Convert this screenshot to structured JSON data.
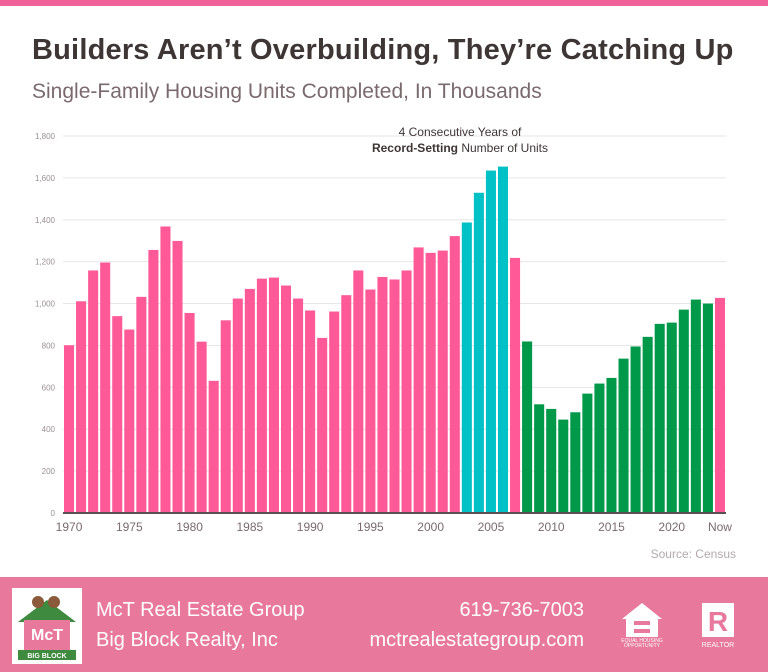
{
  "header": {
    "title": "Builders Aren’t Overbuilding, They’re Catching Up",
    "subtitle": "Single-Family Housing Units Completed, In Thousands"
  },
  "annotation": {
    "line1": "4 Consecutive Years of",
    "bold": "Record-Setting",
    "rest": " Number of Units"
  },
  "source": "Source: Census",
  "colors": {
    "pink": "#ff5a97",
    "teal": "#00c1c6",
    "green": "#00994a",
    "footer": "#e8789c",
    "accent": "#f0619a"
  },
  "chart_data": {
    "type": "bar",
    "title": "Single-Family Housing Units Completed, In Thousands",
    "ylim": [
      0,
      1800
    ],
    "yticks": [
      0,
      200,
      400,
      600,
      800,
      1000,
      1200,
      1400,
      1600,
      1800
    ],
    "ytick_labels": [
      "0",
      "200",
      "400",
      "600",
      "800",
      "1,000",
      "1,200",
      "1,400",
      "1,600",
      "1,800"
    ],
    "xtick_labels": [
      "1970",
      "1975",
      "1980",
      "1985",
      "1990",
      "1995",
      "2000",
      "2005",
      "2010",
      "2015",
      "2020",
      "Now"
    ],
    "grid": true,
    "categories": [
      "1970",
      "1971",
      "1972",
      "1973",
      "1974",
      "1975",
      "1976",
      "1977",
      "1978",
      "1979",
      "1980",
      "1981",
      "1982",
      "1983",
      "1984",
      "1985",
      "1986",
      "1987",
      "1988",
      "1989",
      "1990",
      "1991",
      "1992",
      "1993",
      "1994",
      "1995",
      "1996",
      "1997",
      "1998",
      "1999",
      "2000",
      "2001",
      "2002",
      "2003",
      "2004",
      "2005",
      "2006",
      "2007",
      "2008",
      "2009",
      "2010",
      "2011",
      "2012",
      "2013",
      "2014",
      "2015",
      "2016",
      "2017",
      "2018",
      "2019",
      "2020",
      "2021",
      "2022",
      "2023",
      "Now"
    ],
    "values": [
      801,
      1011,
      1158,
      1196,
      940,
      876,
      1032,
      1256,
      1368,
      1299,
      955,
      818,
      631,
      920,
      1024,
      1070,
      1119,
      1124,
      1086,
      1024,
      967,
      836,
      962,
      1040,
      1158,
      1067,
      1127,
      1115,
      1158,
      1268,
      1242,
      1253,
      1322,
      1387,
      1529,
      1635,
      1654,
      1218,
      819,
      519,
      497,
      446,
      481,
      570,
      618,
      645,
      737,
      795,
      841,
      903,
      909,
      971,
      1019,
      1000,
      1027
    ],
    "bar_colors": [
      "pink",
      "pink",
      "pink",
      "pink",
      "pink",
      "pink",
      "pink",
      "pink",
      "pink",
      "pink",
      "pink",
      "pink",
      "pink",
      "pink",
      "pink",
      "pink",
      "pink",
      "pink",
      "pink",
      "pink",
      "pink",
      "pink",
      "pink",
      "pink",
      "pink",
      "pink",
      "pink",
      "pink",
      "pink",
      "pink",
      "pink",
      "pink",
      "pink",
      "teal",
      "teal",
      "teal",
      "teal",
      "pink",
      "green",
      "green",
      "green",
      "green",
      "green",
      "green",
      "green",
      "green",
      "green",
      "green",
      "green",
      "green",
      "green",
      "green",
      "green",
      "green",
      "pink"
    ]
  },
  "footer": {
    "company": "McT Real Estate Group",
    "brokerage": "Big Block Realty, Inc",
    "phone": "619-736-7003",
    "website": "mctrealestategroup.com",
    "logo_text": "McT BIG BLOCK REALTY",
    "eho_text": "EQUAL HOUSING OPPORTUNITY",
    "realtor_text": "REALTOR"
  }
}
